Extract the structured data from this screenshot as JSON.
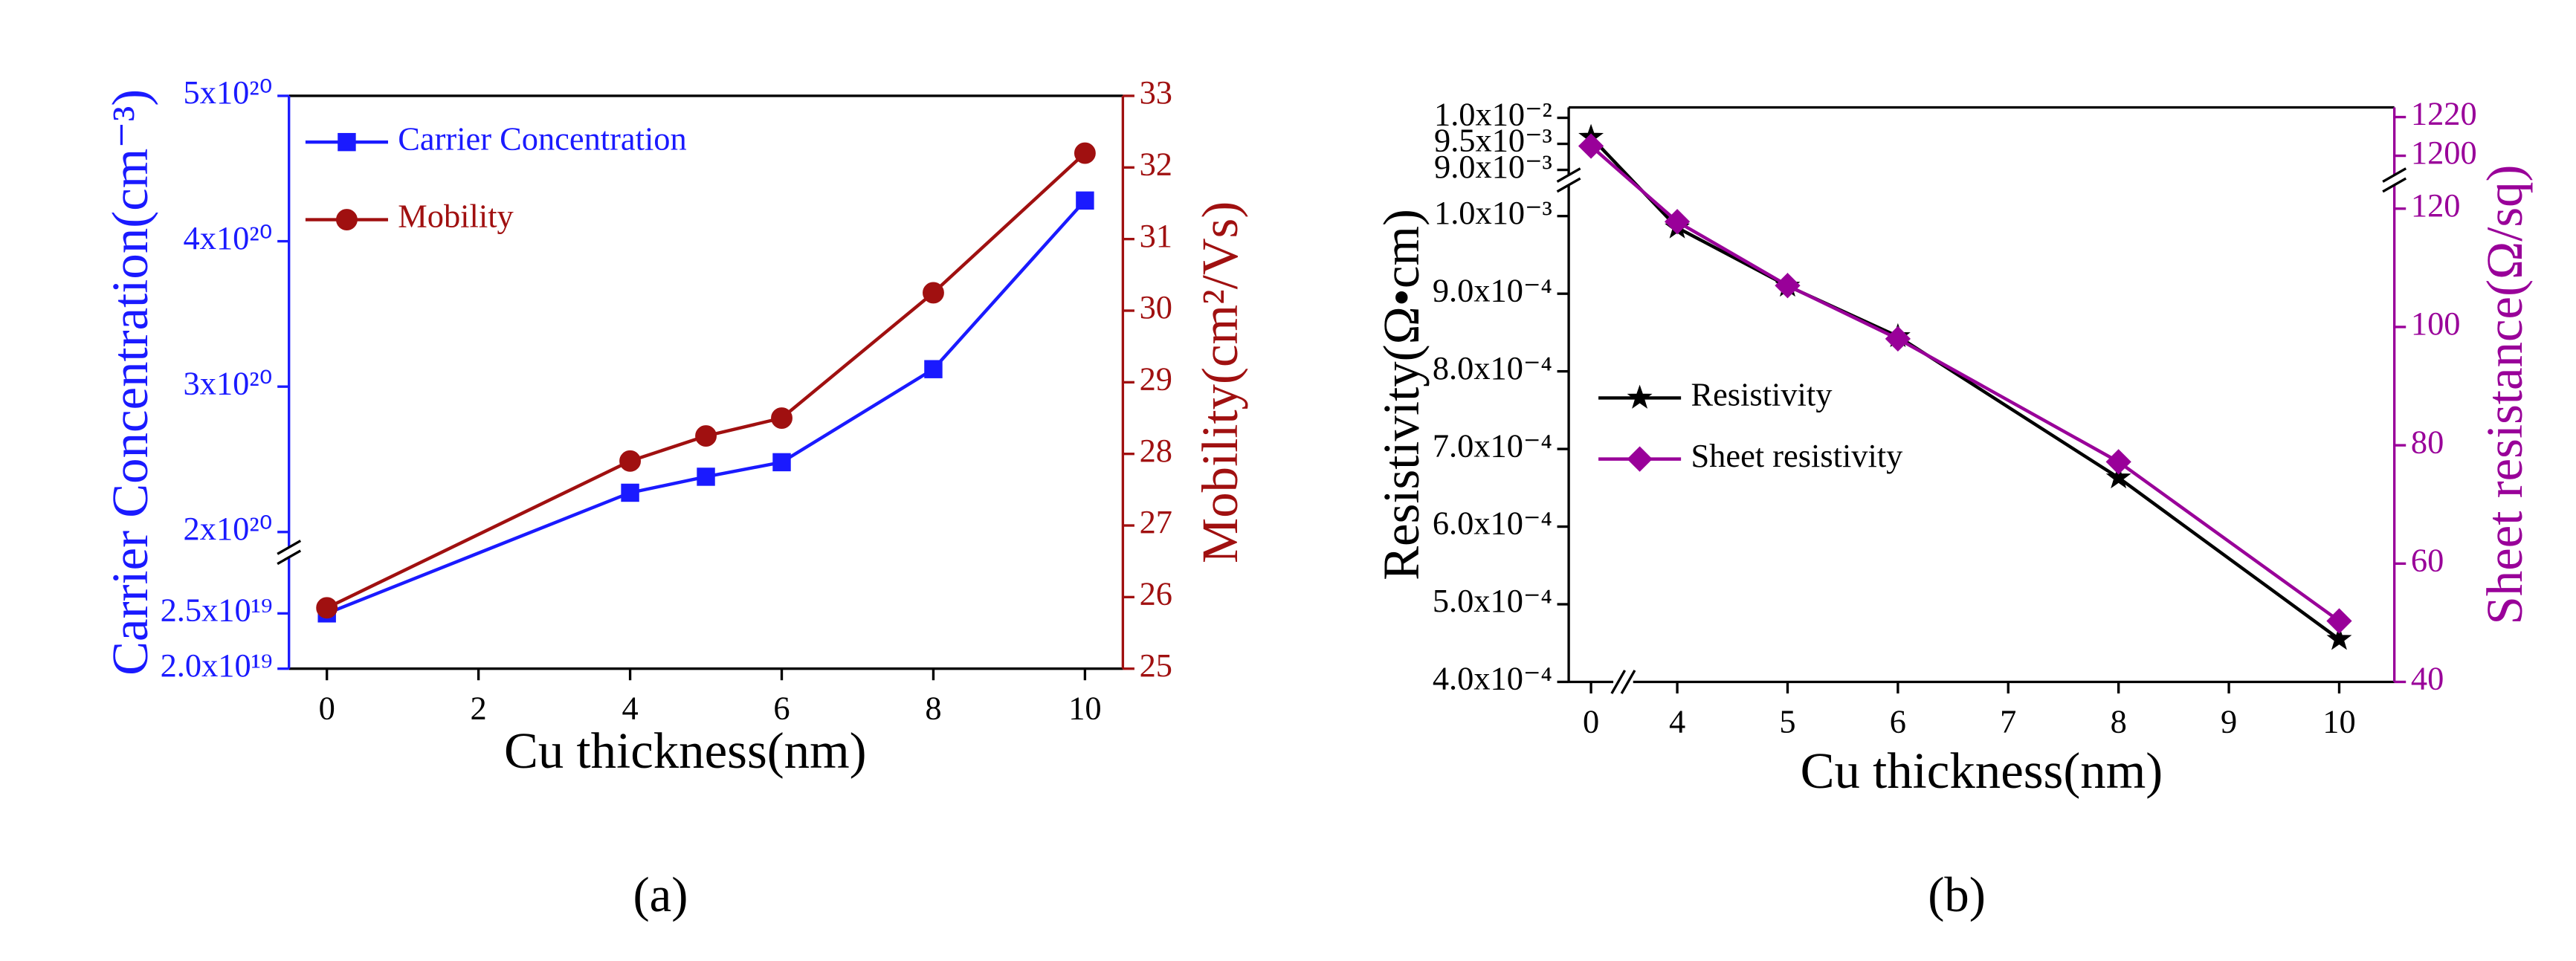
{
  "chart_data": [
    {
      "type": "line",
      "caption": "(a)",
      "xlabel": "Cu thickness(nm)",
      "ylabel": "Carrier Concentration(cm⁻³)",
      "y2label": "Mobility(cm²/Vs)",
      "yaxis_color": "#1a1aff",
      "y2axis_color": "#a01010",
      "legend": "upper left",
      "x": [
        0,
        4,
        5,
        6,
        8,
        10
      ],
      "xlim": [
        -0.5,
        10.5
      ],
      "xticks": [
        0,
        2,
        4,
        6,
        8,
        10
      ],
      "ylim": [
        2e+19,
        5e+20
      ],
      "ybreak": [
        3e+19,
        1.9e+20
      ],
      "yticks": [
        {
          "value": 2e+19,
          "label": "2.0x10¹⁹"
        },
        {
          "value": 2.5e+19,
          "label": "2.5x10¹⁹"
        },
        {
          "value": 2e+20,
          "label": "2x10²⁰"
        },
        {
          "value": 3e+20,
          "label": "3x10²⁰"
        },
        {
          "value": 4e+20,
          "label": "4x10²⁰"
        },
        {
          "value": 5e+20,
          "label": "5x10²⁰"
        }
      ],
      "y2lim": [
        25,
        33
      ],
      "y2ticks": [
        25,
        26,
        27,
        28,
        29,
        30,
        31,
        32,
        33
      ],
      "series": [
        {
          "name": "Carrier Concentration",
          "color": "#1a1aff",
          "marker": "square",
          "values": [
            2.5e+19,
            2.27e+20,
            2.38e+20,
            2.48e+20,
            3.12e+20,
            4.28e+20
          ]
        },
        {
          "name": "Mobility",
          "color": "#a01010",
          "marker": "circle",
          "axis": "y2",
          "values": [
            25.85,
            27.9,
            28.25,
            28.5,
            30.25,
            32.2
          ]
        }
      ]
    },
    {
      "type": "line",
      "caption": "(b)",
      "xlabel": "Cu thickness(nm)",
      "ylabel": "Resistivity(Ω•cm)",
      "y2label": "Sheet resistance(Ω/sq)",
      "yaxis_color": "#000000",
      "y2axis_color": "#990099",
      "legend": "center left",
      "x": [
        0,
        4,
        5,
        6,
        8,
        10
      ],
      "xlim": [
        -0.2,
        10.5
      ],
      "xbreak": [
        0.2,
        3.6
      ],
      "xticks": [
        0,
        4,
        5,
        6,
        7,
        8,
        9,
        10
      ],
      "ylim": [
        0.0004,
        0.0102
      ],
      "ybreak": [
        0.00104,
        0.0089
      ],
      "yticks": [
        {
          "value": 0.0004,
          "label": "4.0x10⁻⁴"
        },
        {
          "value": 0.0005,
          "label": "5.0x10⁻⁴"
        },
        {
          "value": 0.0006,
          "label": "6.0x10⁻⁴"
        },
        {
          "value": 0.0007,
          "label": "7.0x10⁻⁴"
        },
        {
          "value": 0.0008,
          "label": "8.0x10⁻⁴"
        },
        {
          "value": 0.0009,
          "label": "9.0x10⁻⁴"
        },
        {
          "value": 0.001,
          "label": "1.0x10⁻³"
        },
        {
          "value": 0.009,
          "label": "9.0x10⁻³"
        },
        {
          "value": 0.0095,
          "label": "9.5x10⁻³"
        },
        {
          "value": 0.01,
          "label": "1.0x10⁻²"
        }
      ],
      "y2lim": [
        40,
        1225
      ],
      "y2break": [
        124,
        1190
      ],
      "y2ticks": [
        40,
        60,
        80,
        100,
        120,
        1200,
        1220
      ],
      "series": [
        {
          "name": "Resistivity",
          "color": "#000000",
          "marker": "star",
          "values": [
            0.00963,
            0.000985,
            0.00091,
            0.000845,
            0.000663,
            0.000455
          ]
        },
        {
          "name": "Sheet resistivity",
          "color": "#990099",
          "marker": "diamond",
          "axis": "y2",
          "values": [
            1205,
            117.8,
            107,
            98,
            77.2,
            50.3
          ]
        }
      ]
    }
  ]
}
